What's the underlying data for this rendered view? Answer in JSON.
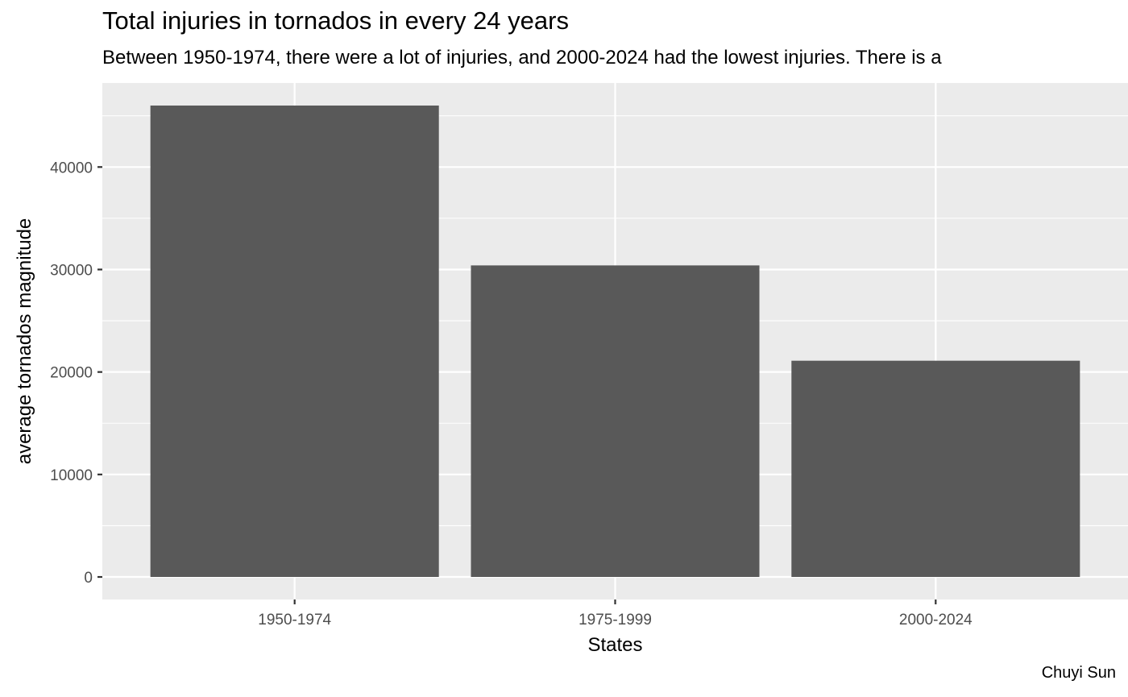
{
  "chart_data": {
    "type": "bar",
    "title": "Total injuries in tornados in every 24 years",
    "subtitle": "Between 1950-1974, there were a lot of injuries, and 2000-2024 had the lowest injuries. There is a",
    "caption": "Chuyi Sun",
    "xlabel": "States",
    "ylabel": "average tornados magnitude",
    "categories": [
      "1950-1974",
      "1975-1999",
      "2000-2024"
    ],
    "values": [
      46000,
      30400,
      21100
    ],
    "ylim": [
      -2200,
      48200
    ],
    "yticks": [
      0,
      10000,
      20000,
      30000,
      40000
    ],
    "ytick_labels": [
      "0",
      "10000",
      "20000",
      "30000",
      "40000"
    ],
    "grid": true,
    "colors": {
      "bar": "#595959",
      "panel": "#ebebeb",
      "grid": "#ffffff"
    }
  }
}
